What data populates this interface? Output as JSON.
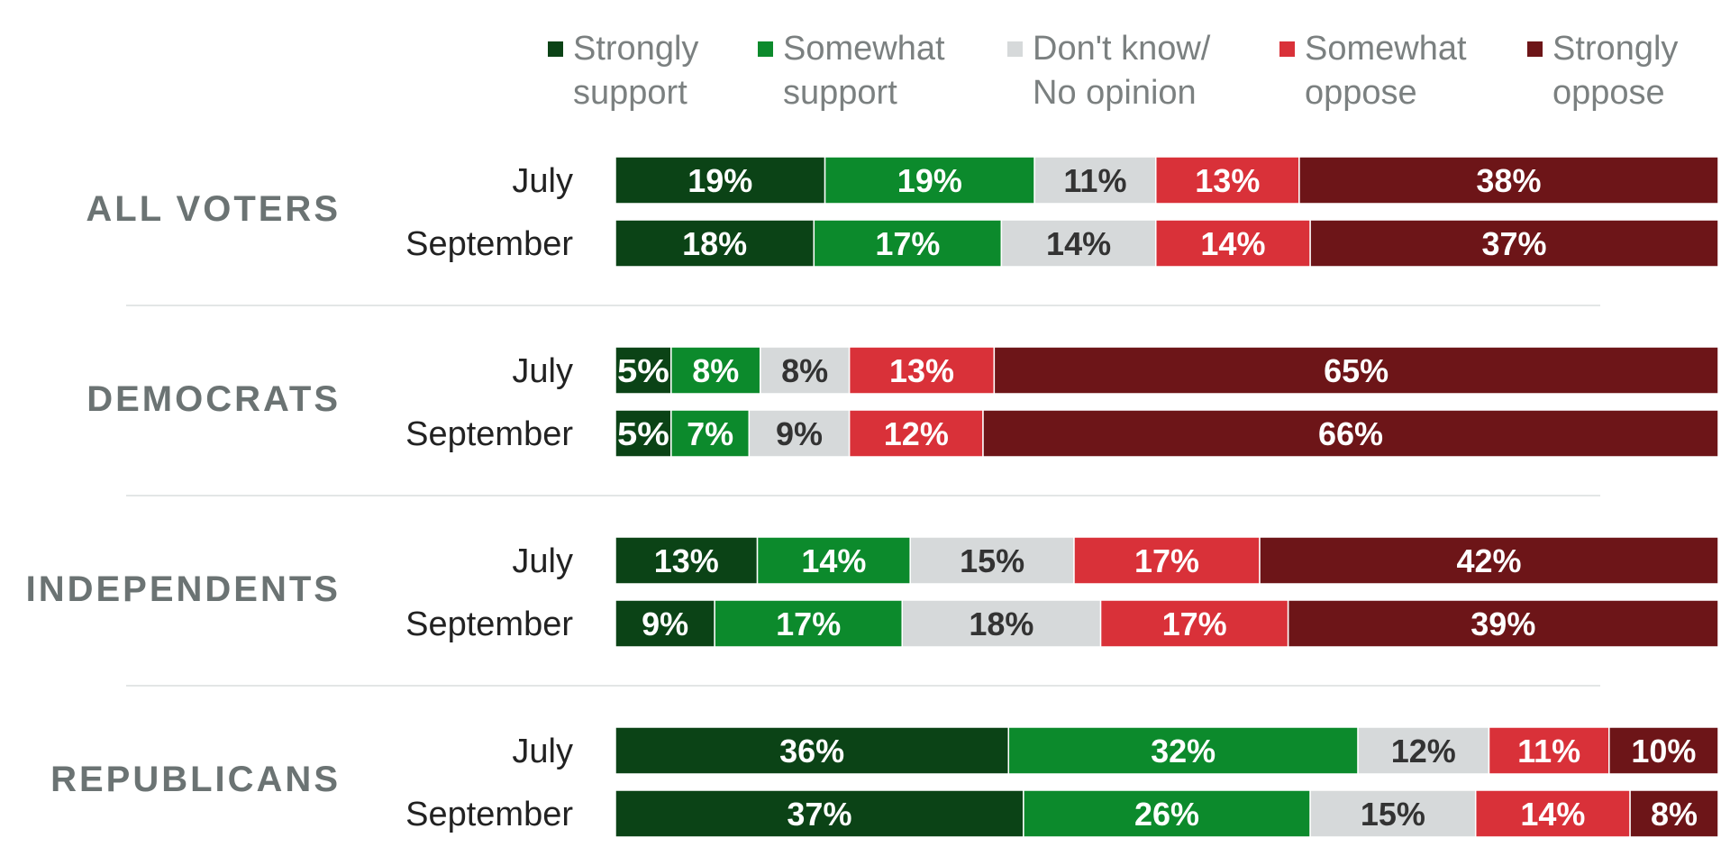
{
  "chart_data": {
    "type": "bar",
    "orientation": "horizontal",
    "stacked": true,
    "legend_position": "top",
    "series": [
      {
        "name": "Strongly support",
        "color": "#0b4316"
      },
      {
        "name": "Somewhat support",
        "color": "#0c8a2c"
      },
      {
        "name": "Don't know/ No opinion",
        "color": "#d6d9da"
      },
      {
        "name": "Somewhat oppose",
        "color": "#d93139"
      },
      {
        "name": "Strongly oppose",
        "color": "#6d1518"
      }
    ],
    "label_colors": [
      "#ffffff",
      "#ffffff",
      "#333333",
      "#ffffff",
      "#ffffff"
    ],
    "groups": [
      {
        "label": "ALL VOTERS",
        "rows": [
          {
            "label": "July",
            "values": [
              19,
              19,
              11,
              13,
              38
            ]
          },
          {
            "label": "September",
            "values": [
              18,
              17,
              14,
              14,
              37
            ]
          }
        ]
      },
      {
        "label": "DEMOCRATS",
        "rows": [
          {
            "label": "July",
            "values": [
              5,
              8,
              8,
              13,
              65
            ]
          },
          {
            "label": "September",
            "values": [
              5,
              7,
              9,
              12,
              66
            ]
          }
        ]
      },
      {
        "label": "INDEPENDENTS",
        "rows": [
          {
            "label": "July",
            "values": [
              13,
              14,
              15,
              17,
              42
            ]
          },
          {
            "label": "September",
            "values": [
              9,
              17,
              18,
              17,
              39
            ]
          }
        ]
      },
      {
        "label": "REPUBLICANS",
        "rows": [
          {
            "label": "July",
            "values": [
              36,
              32,
              12,
              11,
              10
            ]
          },
          {
            "label": "September",
            "values": [
              37,
              26,
              15,
              14,
              8
            ]
          }
        ]
      }
    ]
  }
}
